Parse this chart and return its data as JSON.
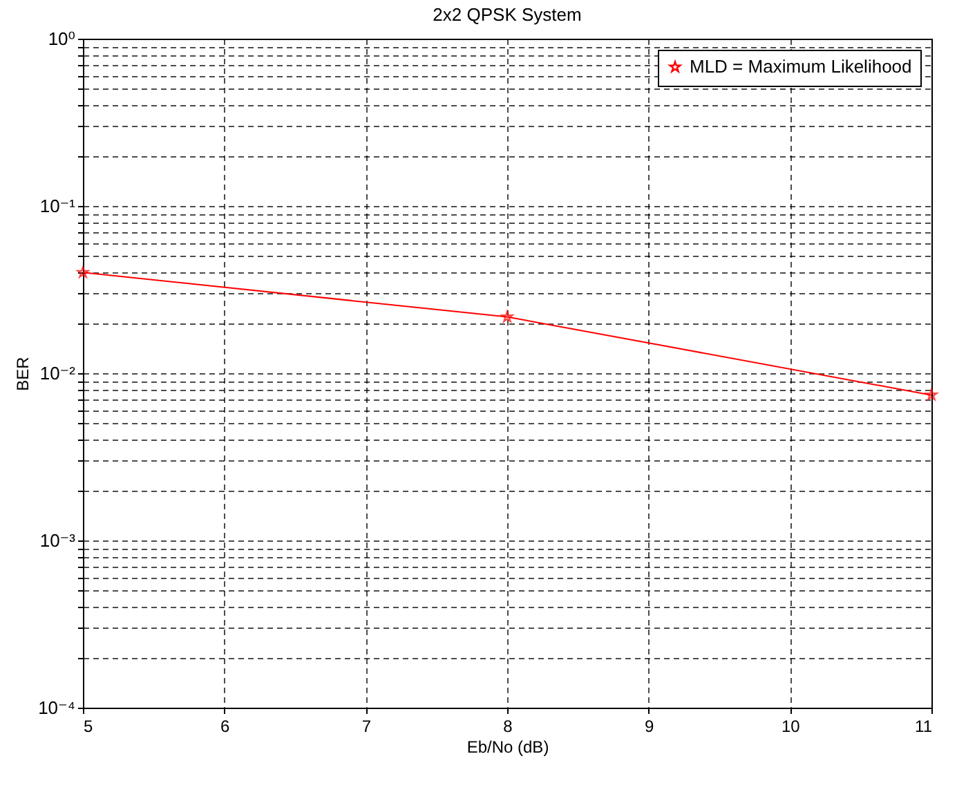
{
  "chart_data": {
    "type": "line",
    "title": "2x2 QPSK System",
    "xlabel": "Eb/No (dB)",
    "ylabel": "BER",
    "x": [
      5,
      8,
      11
    ],
    "series": [
      {
        "name": "MLD = Maximum Likelihood",
        "color": "#ff0000",
        "values": [
          0.04,
          0.0217,
          0.0074
        ]
      }
    ],
    "xlim": [
      5,
      11
    ],
    "xticks": [
      5,
      6,
      7,
      8,
      9,
      10,
      11
    ],
    "ylim": [
      0.0001,
      1
    ],
    "yticks": [
      {
        "value": 0.0001,
        "label": "10⁻⁴"
      },
      {
        "value": 0.0002,
        "label": null
      },
      {
        "value": 0.0003,
        "label": null
      },
      {
        "value": 0.0004,
        "label": null
      },
      {
        "value": 0.0005,
        "label": null
      },
      {
        "value": 0.0006,
        "label": null
      },
      {
        "value": 0.0007,
        "label": null
      },
      {
        "value": 0.0008,
        "label": null
      },
      {
        "value": 0.0009,
        "label": null
      },
      {
        "value": 0.001,
        "label": "10⁻³"
      },
      {
        "value": 0.002,
        "label": null
      },
      {
        "value": 0.003,
        "label": null
      },
      {
        "value": 0.004,
        "label": null
      },
      {
        "value": 0.005,
        "label": null
      },
      {
        "value": 0.006,
        "label": null
      },
      {
        "value": 0.007,
        "label": null
      },
      {
        "value": 0.008,
        "label": null
      },
      {
        "value": 0.009,
        "label": null
      },
      {
        "value": 0.01,
        "label": "10⁻²"
      },
      {
        "value": 0.02,
        "label": null
      },
      {
        "value": 0.03,
        "label": null
      },
      {
        "value": 0.04,
        "label": null
      },
      {
        "value": 0.05,
        "label": null
      },
      {
        "value": 0.06,
        "label": null
      },
      {
        "value": 0.07,
        "label": null
      },
      {
        "value": 0.08,
        "label": null
      },
      {
        "value": 0.09,
        "label": null
      },
      {
        "value": 0.1,
        "label": "10⁻¹"
      },
      {
        "value": 0.2,
        "label": null
      },
      {
        "value": 0.3,
        "label": null
      },
      {
        "value": 0.4,
        "label": null
      },
      {
        "value": 0.5,
        "label": null
      },
      {
        "value": 0.6,
        "label": null
      },
      {
        "value": 0.7,
        "label": null
      },
      {
        "value": 0.8,
        "label": null
      },
      {
        "value": 0.9,
        "label": null
      },
      {
        "value": 1,
        "label": "10⁰"
      }
    ],
    "log": "y",
    "grid": true,
    "legend": "top right",
    "marker": "star",
    "line_style": "solid"
  }
}
